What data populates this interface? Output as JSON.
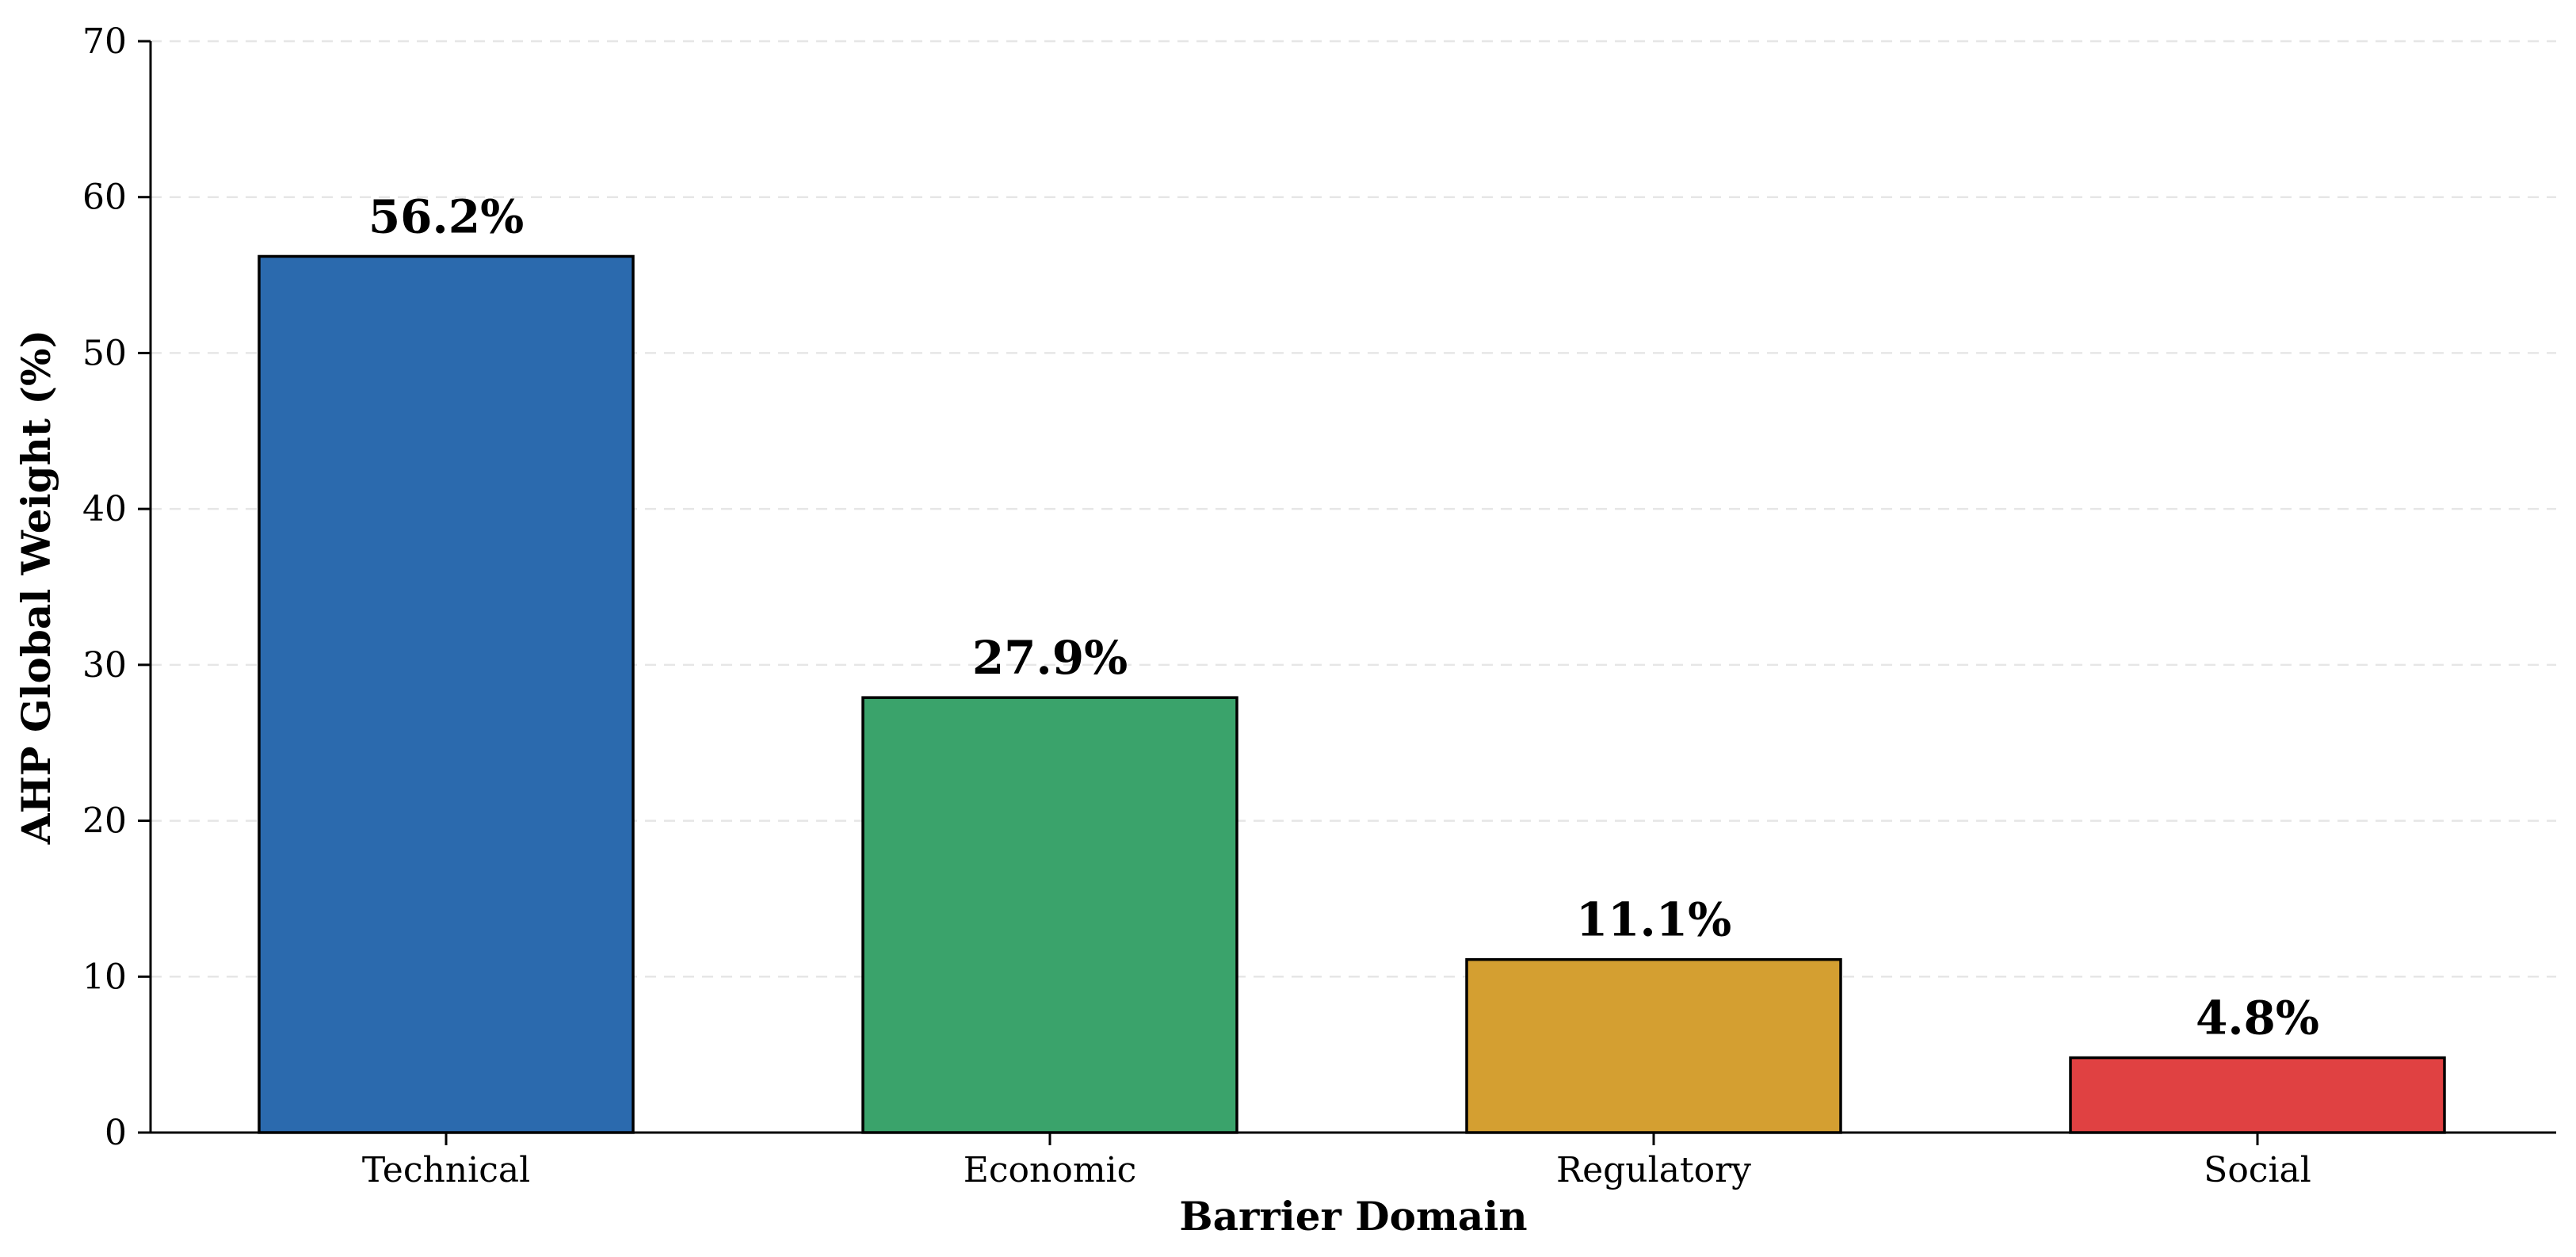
{
  "chart_data": {
    "type": "bar",
    "title": "",
    "xlabel": "Barrier Domain",
    "ylabel": "AHP Global Weight (%)",
    "ylim": [
      0,
      70
    ],
    "yticks": [
      0,
      10,
      20,
      30,
      40,
      50,
      60,
      70
    ],
    "grid": true,
    "categories": [
      "Technical",
      "Economic",
      "Regulatory",
      "Social"
    ],
    "values": [
      56.2,
      27.9,
      11.1,
      4.8
    ],
    "data_labels": [
      "56.2%",
      "27.9%",
      "11.1%",
      "4.8%"
    ],
    "colors": [
      "#2b6aae",
      "#3aa36b",
      "#d49f31",
      "#e04142"
    ]
  }
}
